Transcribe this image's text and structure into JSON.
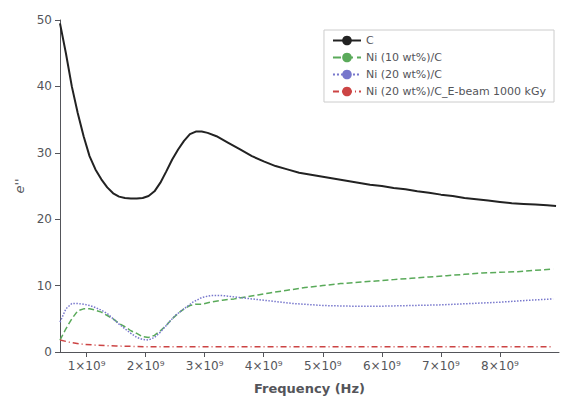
{
  "chart_data": {
    "type": "line",
    "xlabel": "Frequency (Hz)",
    "ylabel": "e''",
    "xlim": [
      550000000.0,
      9000000000.0
    ],
    "ylim": [
      0,
      50
    ],
    "xticks": [
      {
        "value": 1000000000.0,
        "label": "1×10⁹"
      },
      {
        "value": 2000000000.0,
        "label": "2×10⁹"
      },
      {
        "value": 3000000000.0,
        "label": "3×10⁹"
      },
      {
        "value": 4000000000.0,
        "label": "4×10⁹"
      },
      {
        "value": 5000000000.0,
        "label": "5×10⁹"
      },
      {
        "value": 6000000000.0,
        "label": "6×10⁹"
      },
      {
        "value": 7000000000.0,
        "label": "7×10⁹"
      },
      {
        "value": 8000000000.0,
        "label": "8×10⁹"
      }
    ],
    "yticks": [
      0,
      10,
      20,
      30,
      40,
      50
    ],
    "grid": false,
    "legend": "upper right",
    "series": [
      {
        "name": "C",
        "color": "#222222",
        "line_style": "solid",
        "x": [
          550000000.0,
          650000000.0,
          750000000.0,
          850000000.0,
          950000000.0,
          1050000000.0,
          1150000000.0,
          1250000000.0,
          1350000000.0,
          1450000000.0,
          1550000000.0,
          1650000000.0,
          1750000000.0,
          1850000000.0,
          1950000000.0,
          2050000000.0,
          2150000000.0,
          2250000000.0,
          2350000000.0,
          2450000000.0,
          2550000000.0,
          2650000000.0,
          2750000000.0,
          2850000000.0,
          2950000000.0,
          3050000000.0,
          3200000000.0,
          3400000000.0,
          3600000000.0,
          3800000000.0,
          4000000000.0,
          4200000000.0,
          4400000000.0,
          4600000000.0,
          4800000000.0,
          5000000000.0,
          5200000000.0,
          5400000000.0,
          5600000000.0,
          5800000000.0,
          6000000000.0,
          6200000000.0,
          6400000000.0,
          6600000000.0,
          6800000000.0,
          7000000000.0,
          7200000000.0,
          7400000000.0,
          7600000000.0,
          7800000000.0,
          8000000000.0,
          8200000000.0,
          8400000000.0,
          8600000000.0,
          8800000000.0,
          8950000000.0
        ],
        "values": [
          49.5,
          45.0,
          40.0,
          36.0,
          32.5,
          29.5,
          27.5,
          26.0,
          24.8,
          23.9,
          23.4,
          23.2,
          23.1,
          23.1,
          23.2,
          23.5,
          24.2,
          25.5,
          27.2,
          29.0,
          30.5,
          31.8,
          32.8,
          33.2,
          33.2,
          33.0,
          32.5,
          31.5,
          30.5,
          29.5,
          28.7,
          28.0,
          27.5,
          27.0,
          26.7,
          26.4,
          26.1,
          25.8,
          25.5,
          25.2,
          25.0,
          24.7,
          24.5,
          24.2,
          24.0,
          23.7,
          23.5,
          23.2,
          23.0,
          22.8,
          22.6,
          22.4,
          22.3,
          22.2,
          22.1,
          22.0
        ]
      },
      {
        "name": "Ni (10 wt%)/C",
        "color": "#5aaa5a",
        "line_style": "dashed",
        "x": [
          550000000.0,
          650000000.0,
          750000000.0,
          850000000.0,
          950000000.0,
          1050000000.0,
          1150000000.0,
          1250000000.0,
          1350000000.0,
          1450000000.0,
          1550000000.0,
          1650000000.0,
          1750000000.0,
          1850000000.0,
          1950000000.0,
          2050000000.0,
          2150000000.0,
          2250000000.0,
          2350000000.0,
          2450000000.0,
          2550000000.0,
          2650000000.0,
          2750000000.0,
          2850000000.0,
          2950000000.0,
          3100000000.0,
          3300000000.0,
          3500000000.0,
          3700000000.0,
          3900000000.0,
          4100000000.0,
          4400000000.0,
          4700000000.0,
          5000000000.0,
          5300000000.0,
          5600000000.0,
          5900000000.0,
          6200000000.0,
          6500000000.0,
          6800000000.0,
          7100000000.0,
          7400000000.0,
          7700000000.0,
          8000000000.0,
          8300000000.0,
          8600000000.0,
          8900000000.0
        ],
        "values": [
          1.8,
          3.5,
          5.0,
          6.2,
          6.5,
          6.5,
          6.3,
          6.0,
          5.5,
          5.0,
          4.3,
          3.8,
          3.2,
          2.8,
          2.3,
          2.2,
          2.5,
          3.2,
          4.0,
          5.0,
          5.8,
          6.5,
          7.0,
          7.2,
          7.2,
          7.5,
          7.8,
          8.0,
          8.3,
          8.6,
          8.9,
          9.3,
          9.7,
          10.0,
          10.3,
          10.5,
          10.7,
          10.9,
          11.1,
          11.3,
          11.5,
          11.7,
          11.9,
          12.0,
          12.1,
          12.3,
          12.5
        ]
      },
      {
        "name": "Ni (20 wt%)/C",
        "color": "#7777cc",
        "line_style": "dotted",
        "x": [
          550000000.0,
          650000000.0,
          750000000.0,
          850000000.0,
          950000000.0,
          1050000000.0,
          1150000000.0,
          1250000000.0,
          1350000000.0,
          1450000000.0,
          1550000000.0,
          1650000000.0,
          1750000000.0,
          1850000000.0,
          1950000000.0,
          2050000000.0,
          2150000000.0,
          2250000000.0,
          2350000000.0,
          2500000000.0,
          2650000000.0,
          2800000000.0,
          2950000000.0,
          3100000000.0,
          3300000000.0,
          3500000000.0,
          3800000000.0,
          4100000000.0,
          4500000000.0,
          5000000000.0,
          5500000000.0,
          6000000000.0,
          6500000000.0,
          7000000000.0,
          7500000000.0,
          8000000000.0,
          8500000000.0,
          8900000000.0
        ],
        "values": [
          4.5,
          6.5,
          7.3,
          7.3,
          7.2,
          7.0,
          6.7,
          6.3,
          5.8,
          5.0,
          4.2,
          3.5,
          2.8,
          2.2,
          1.9,
          1.8,
          2.2,
          3.0,
          4.0,
          5.5,
          6.5,
          7.5,
          8.2,
          8.5,
          8.5,
          8.3,
          8.0,
          7.7,
          7.3,
          7.0,
          6.9,
          6.9,
          7.0,
          7.1,
          7.3,
          7.5,
          7.8,
          8.0
        ]
      },
      {
        "name": "Ni (20 wt%)/C_E-beam 1000 kGy",
        "color": "#cc4444",
        "line_style": "dashdot",
        "x": [
          550000000.0,
          700000000.0,
          900000000.0,
          1200000000.0,
          1500000000.0,
          2000000000.0,
          2500000000.0,
          3000000000.0,
          3500000000.0,
          4000000000.0,
          5000000000.0,
          6000000000.0,
          7000000000.0,
          8000000000.0,
          8900000000.0
        ],
        "values": [
          1.8,
          1.5,
          1.2,
          1.0,
          0.9,
          0.8,
          0.8,
          0.8,
          0.8,
          0.8,
          0.8,
          0.8,
          0.8,
          0.8,
          0.8
        ]
      }
    ]
  }
}
